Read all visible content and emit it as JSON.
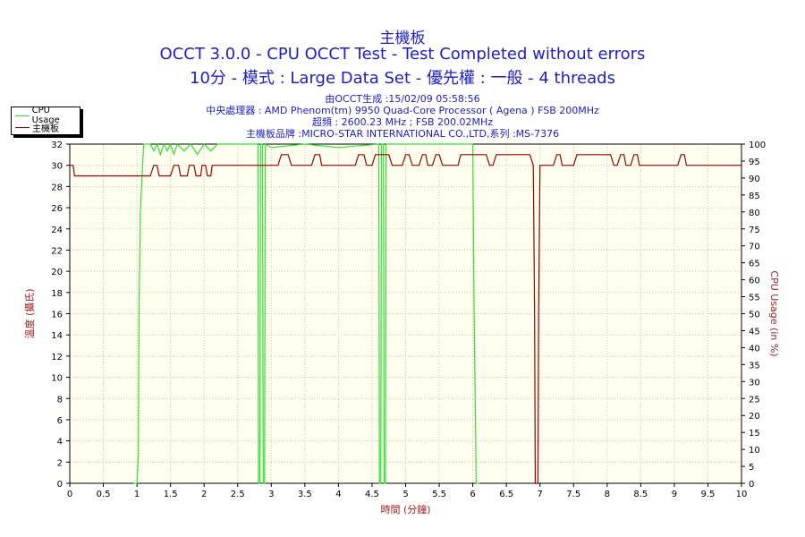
{
  "title": "主機板",
  "subtitle1": "OCCT 3.0.0 - CPU OCCT Test - Test Completed without errors",
  "subtitle2": "10分 - 模式 : Large Data Set - 優先權 : 一般 - 4 threads",
  "info": [
    "由OCCT生成 :15/02/09 05:58:56",
    "中央處理器 : AMD Phenom(tm) 9950 Quad-Core Processor ( Agena ) FSB 200MHz",
    "超頻 : 2600.23 MHz ; FSB 200.02MHz",
    "主機板品牌 :MICRO-STAR INTERNATIONAL CO.,LTD,系列 :MS-7376"
  ],
  "legend": [
    {
      "name": "CPU Usage",
      "color": "#33dd33"
    },
    {
      "name": "主機板",
      "color": "#990000"
    }
  ],
  "chart_data": {
    "type": "line",
    "xlabel": "時間 (分鐘)",
    "ylabel_left": "溫度 (攝氏)",
    "ylabel_right": "CPU Usage (in %)",
    "xlim": [
      0,
      10
    ],
    "ylim_left": [
      0,
      32
    ],
    "ylim_right": [
      0,
      100
    ],
    "x_ticks": [
      "0",
      "0.5",
      "1",
      "1.5",
      "2",
      "2.5",
      "3",
      "3.5",
      "4",
      "4.5",
      "5",
      "5.5",
      "6",
      "6.5",
      "7",
      "7.5",
      "8",
      "8.5",
      "9",
      "9.5",
      "10"
    ],
    "y_ticks_left": [
      "0",
      "2",
      "4",
      "6",
      "8",
      "10",
      "12",
      "14",
      "16",
      "18",
      "20",
      "22",
      "24",
      "26",
      "28",
      "30",
      "32"
    ],
    "y_ticks_right": [
      "0",
      "5",
      "10",
      "15",
      "20",
      "25",
      "30",
      "35",
      "40",
      "45",
      "50",
      "55",
      "60",
      "65",
      "70",
      "75",
      "80",
      "85",
      "90",
      "95",
      "100"
    ],
    "grid": true,
    "legend_position": "top-left",
    "series": [
      {
        "name": "CPU Usage",
        "axis": "right",
        "color": "#33dd33",
        "points": [
          [
            0.95,
            0
          ],
          [
            1.0,
            0
          ],
          [
            1.02,
            8
          ],
          [
            1.03,
            50
          ],
          [
            1.05,
            80
          ],
          [
            1.08,
            92
          ],
          [
            1.1,
            100
          ],
          [
            1.2,
            100
          ],
          [
            1.25,
            98
          ],
          [
            1.3,
            100
          ],
          [
            1.35,
            97
          ],
          [
            1.4,
            100
          ],
          [
            1.45,
            98
          ],
          [
            1.5,
            100
          ],
          [
            1.55,
            97
          ],
          [
            1.6,
            100
          ],
          [
            1.7,
            98
          ],
          [
            1.8,
            100
          ],
          [
            1.9,
            97
          ],
          [
            2.0,
            100
          ],
          [
            2.1,
            98
          ],
          [
            2.2,
            100
          ],
          [
            2.8,
            100
          ],
          [
            2.81,
            0
          ],
          [
            2.83,
            0
          ],
          [
            2.84,
            100
          ],
          [
            2.87,
            100
          ],
          [
            2.88,
            0
          ],
          [
            2.9,
            0
          ],
          [
            2.91,
            100
          ],
          [
            3.0,
            99
          ],
          [
            3.5,
            100
          ],
          [
            4.0,
            99
          ],
          [
            4.6,
            100
          ],
          [
            4.61,
            0
          ],
          [
            4.63,
            0
          ],
          [
            4.64,
            100
          ],
          [
            4.67,
            100
          ],
          [
            4.68,
            0
          ],
          [
            4.7,
            0
          ],
          [
            4.71,
            100
          ],
          [
            5.5,
            100
          ],
          [
            6.0,
            100
          ],
          [
            6.02,
            50
          ],
          [
            6.05,
            0
          ],
          [
            6.1,
            0
          ]
        ]
      },
      {
        "name": "主機板",
        "axis": "left",
        "color": "#990000",
        "points": [
          [
            0,
            30
          ],
          [
            0.05,
            30
          ],
          [
            0.07,
            29
          ],
          [
            0.9,
            29
          ],
          [
            1.0,
            29
          ],
          [
            1.05,
            29
          ],
          [
            1.2,
            29
          ],
          [
            1.25,
            30
          ],
          [
            1.3,
            30
          ],
          [
            1.33,
            29
          ],
          [
            1.5,
            29
          ],
          [
            1.55,
            30
          ],
          [
            1.62,
            30
          ],
          [
            1.65,
            29
          ],
          [
            1.75,
            29
          ],
          [
            1.78,
            30
          ],
          [
            1.85,
            30
          ],
          [
            1.88,
            29
          ],
          [
            1.95,
            29
          ],
          [
            1.97,
            30
          ],
          [
            2.02,
            30
          ],
          [
            2.05,
            29
          ],
          [
            2.1,
            29
          ],
          [
            2.12,
            30
          ],
          [
            3.1,
            30
          ],
          [
            3.15,
            31
          ],
          [
            3.25,
            31
          ],
          [
            3.3,
            30
          ],
          [
            3.6,
            30
          ],
          [
            3.65,
            31
          ],
          [
            3.72,
            31
          ],
          [
            3.75,
            30
          ],
          [
            4.25,
            30
          ],
          [
            4.3,
            31
          ],
          [
            4.38,
            31
          ],
          [
            4.42,
            30
          ],
          [
            4.5,
            30
          ],
          [
            4.55,
            31
          ],
          [
            4.75,
            31
          ],
          [
            4.8,
            30
          ],
          [
            4.95,
            30
          ],
          [
            5.0,
            31
          ],
          [
            5.05,
            31
          ],
          [
            5.1,
            30
          ],
          [
            5.2,
            30
          ],
          [
            5.25,
            31
          ],
          [
            5.3,
            31
          ],
          [
            5.33,
            30
          ],
          [
            5.4,
            30
          ],
          [
            5.45,
            31
          ],
          [
            5.5,
            31
          ],
          [
            5.55,
            30
          ],
          [
            5.78,
            30
          ],
          [
            5.82,
            31
          ],
          [
            6.2,
            31
          ],
          [
            6.25,
            30
          ],
          [
            6.3,
            30
          ],
          [
            6.35,
            31
          ],
          [
            6.85,
            31
          ],
          [
            6.9,
            30
          ],
          [
            6.92,
            16
          ],
          [
            6.93,
            0
          ],
          [
            6.97,
            0
          ],
          [
            6.98,
            16
          ],
          [
            7.0,
            30
          ],
          [
            7.2,
            30
          ],
          [
            7.25,
            31
          ],
          [
            7.3,
            31
          ],
          [
            7.33,
            30
          ],
          [
            7.5,
            30
          ],
          [
            7.55,
            31
          ],
          [
            8.05,
            31
          ],
          [
            8.1,
            30
          ],
          [
            8.15,
            30
          ],
          [
            8.2,
            31
          ],
          [
            8.25,
            31
          ],
          [
            8.28,
            30
          ],
          [
            8.35,
            30
          ],
          [
            8.4,
            31
          ],
          [
            8.45,
            31
          ],
          [
            8.48,
            30
          ],
          [
            9.05,
            30
          ],
          [
            9.1,
            31
          ],
          [
            9.15,
            31
          ],
          [
            9.18,
            30
          ],
          [
            10,
            30
          ]
        ]
      }
    ]
  }
}
